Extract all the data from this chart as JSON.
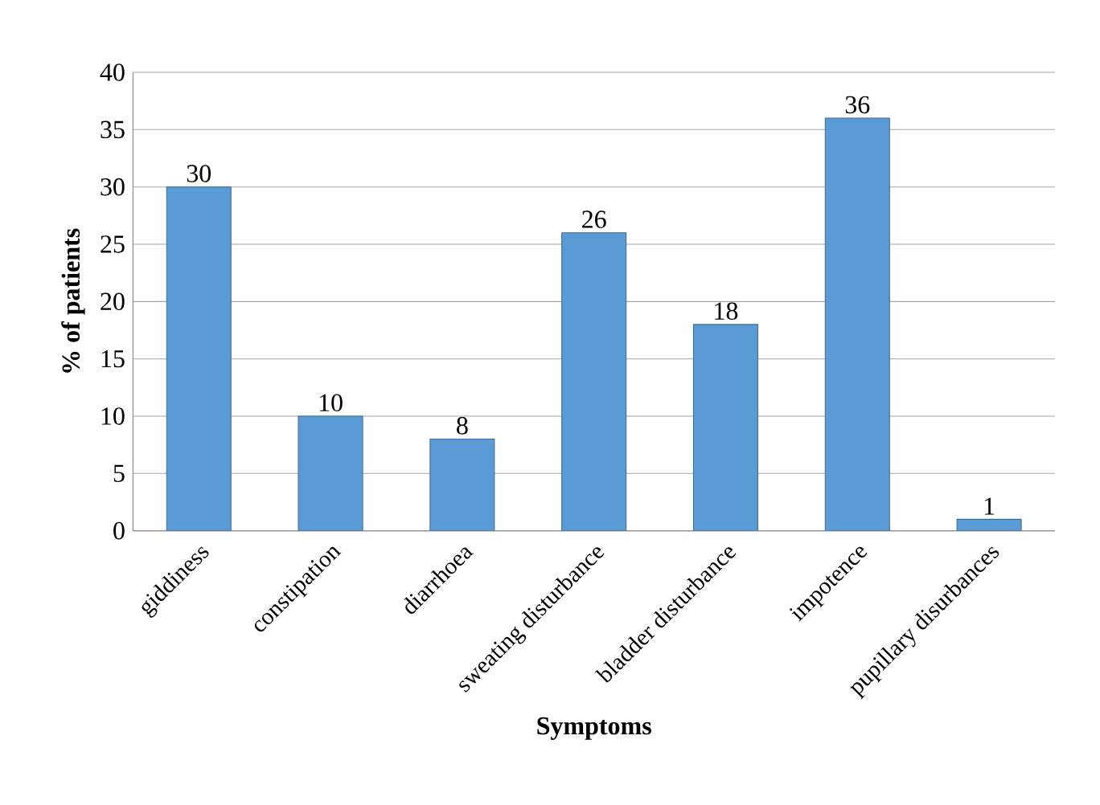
{
  "chart_data": {
    "type": "bar",
    "xlabel": "Symptoms",
    "ylabel": "% of patients",
    "categories": [
      "giddiness",
      "constipation",
      "diarrhoea",
      "sweating disturbance",
      "bladder disturbance",
      "impotence",
      "pupillary disurbances"
    ],
    "values": [
      30,
      10,
      8,
      26,
      18,
      36,
      1
    ],
    "color": "#5b9bd5",
    "ylim": [
      0,
      40
    ],
    "yticks": [
      0,
      5,
      10,
      15,
      20,
      25,
      30,
      35,
      40
    ],
    "grid": "y",
    "data_labels": true
  }
}
